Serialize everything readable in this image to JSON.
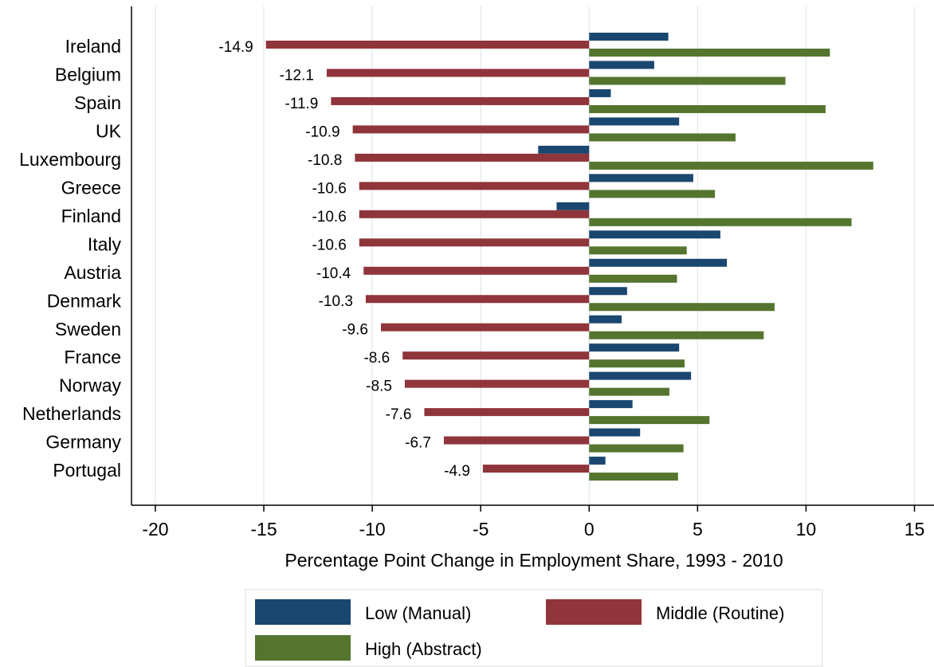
{
  "chart_data": {
    "type": "bar",
    "orientation": "horizontal",
    "xlabel": "Percentage Point Change in Employment Share, 1993 - 2010",
    "categories": [
      "Ireland",
      "Belgium",
      "Spain",
      "UK",
      "Luxembourg",
      "Greece",
      "Finland",
      "Italy",
      "Austria",
      "Denmark",
      "Sweden",
      "France",
      "Norway",
      "Netherlands",
      "Germany",
      "Portugal"
    ],
    "series": [
      {
        "name": "Low (Manual)",
        "color": "#1a476f",
        "values": [
          3.65,
          3.0,
          1.0,
          4.15,
          -2.35,
          4.8,
          -1.5,
          6.05,
          6.35,
          1.75,
          1.5,
          4.15,
          4.7,
          2.0,
          2.35,
          0.75
        ]
      },
      {
        "name": "Middle (Routine)",
        "color": "#90353b",
        "values": [
          -14.9,
          -12.1,
          -11.9,
          -10.9,
          -10.8,
          -10.6,
          -10.6,
          -10.6,
          -10.4,
          -10.3,
          -9.6,
          -8.6,
          -8.5,
          -7.6,
          -6.7,
          -4.9
        ],
        "show_value_labels": true
      },
      {
        "name": "High (Abstract)",
        "color": "#55752f",
        "values": [
          11.1,
          9.05,
          10.9,
          6.75,
          13.1,
          5.8,
          12.1,
          4.5,
          4.05,
          8.55,
          8.05,
          4.4,
          3.7,
          5.55,
          4.35,
          4.1
        ]
      }
    ],
    "xlim": [
      -21.1,
      15.9
    ],
    "xticks": [
      -20,
      -15,
      -10,
      -5,
      0,
      5,
      10,
      15
    ],
    "grid": true,
    "legend": "bottom"
  }
}
